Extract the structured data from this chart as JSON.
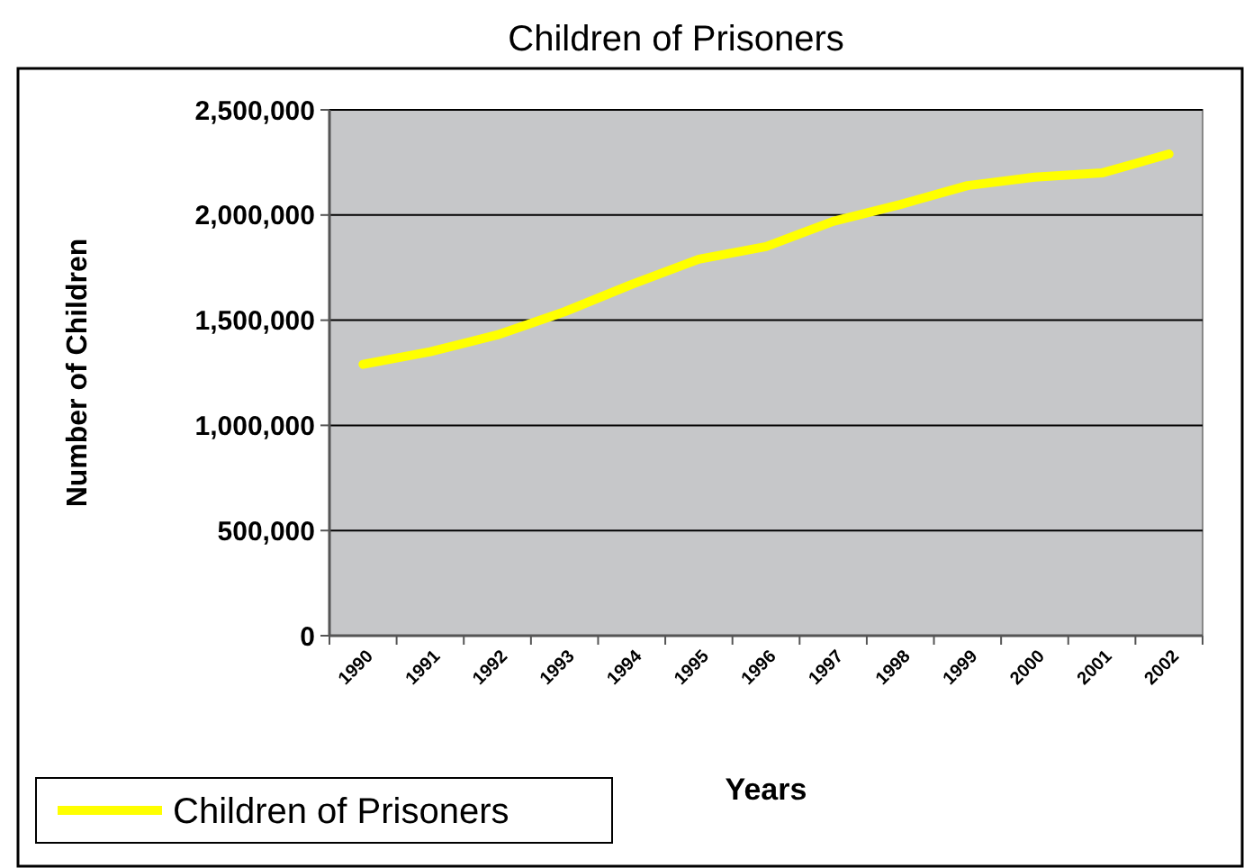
{
  "chart_data": {
    "type": "line",
    "title": "Children of Prisoners",
    "xlabel": "Years",
    "ylabel": "Number of Children",
    "categories": [
      "1990",
      "1991",
      "1992",
      "1993",
      "1994",
      "1995",
      "1996",
      "1997",
      "1998",
      "1999",
      "2000",
      "2001",
      "2002"
    ],
    "series": [
      {
        "name": "Children of Prisoners",
        "color": "#ffff00",
        "values": [
          1290000,
          1350000,
          1430000,
          1540000,
          1670000,
          1790000,
          1850000,
          1970000,
          2050000,
          2140000,
          2180000,
          2200000,
          2290000
        ]
      }
    ],
    "ylim": [
      0,
      2500000
    ],
    "yticks": [
      {
        "value": 0,
        "label": "0"
      },
      {
        "value": 500000,
        "label": "500,000"
      },
      {
        "value": 1000000,
        "label": "1,000,000"
      },
      {
        "value": 1500000,
        "label": "1,500,000"
      },
      {
        "value": 2000000,
        "label": "2,000,000"
      },
      {
        "value": 2500000,
        "label": "2,500,000"
      }
    ],
    "grid": "y",
    "legend": "bottom left",
    "marker": "none",
    "line_style": "solid"
  }
}
